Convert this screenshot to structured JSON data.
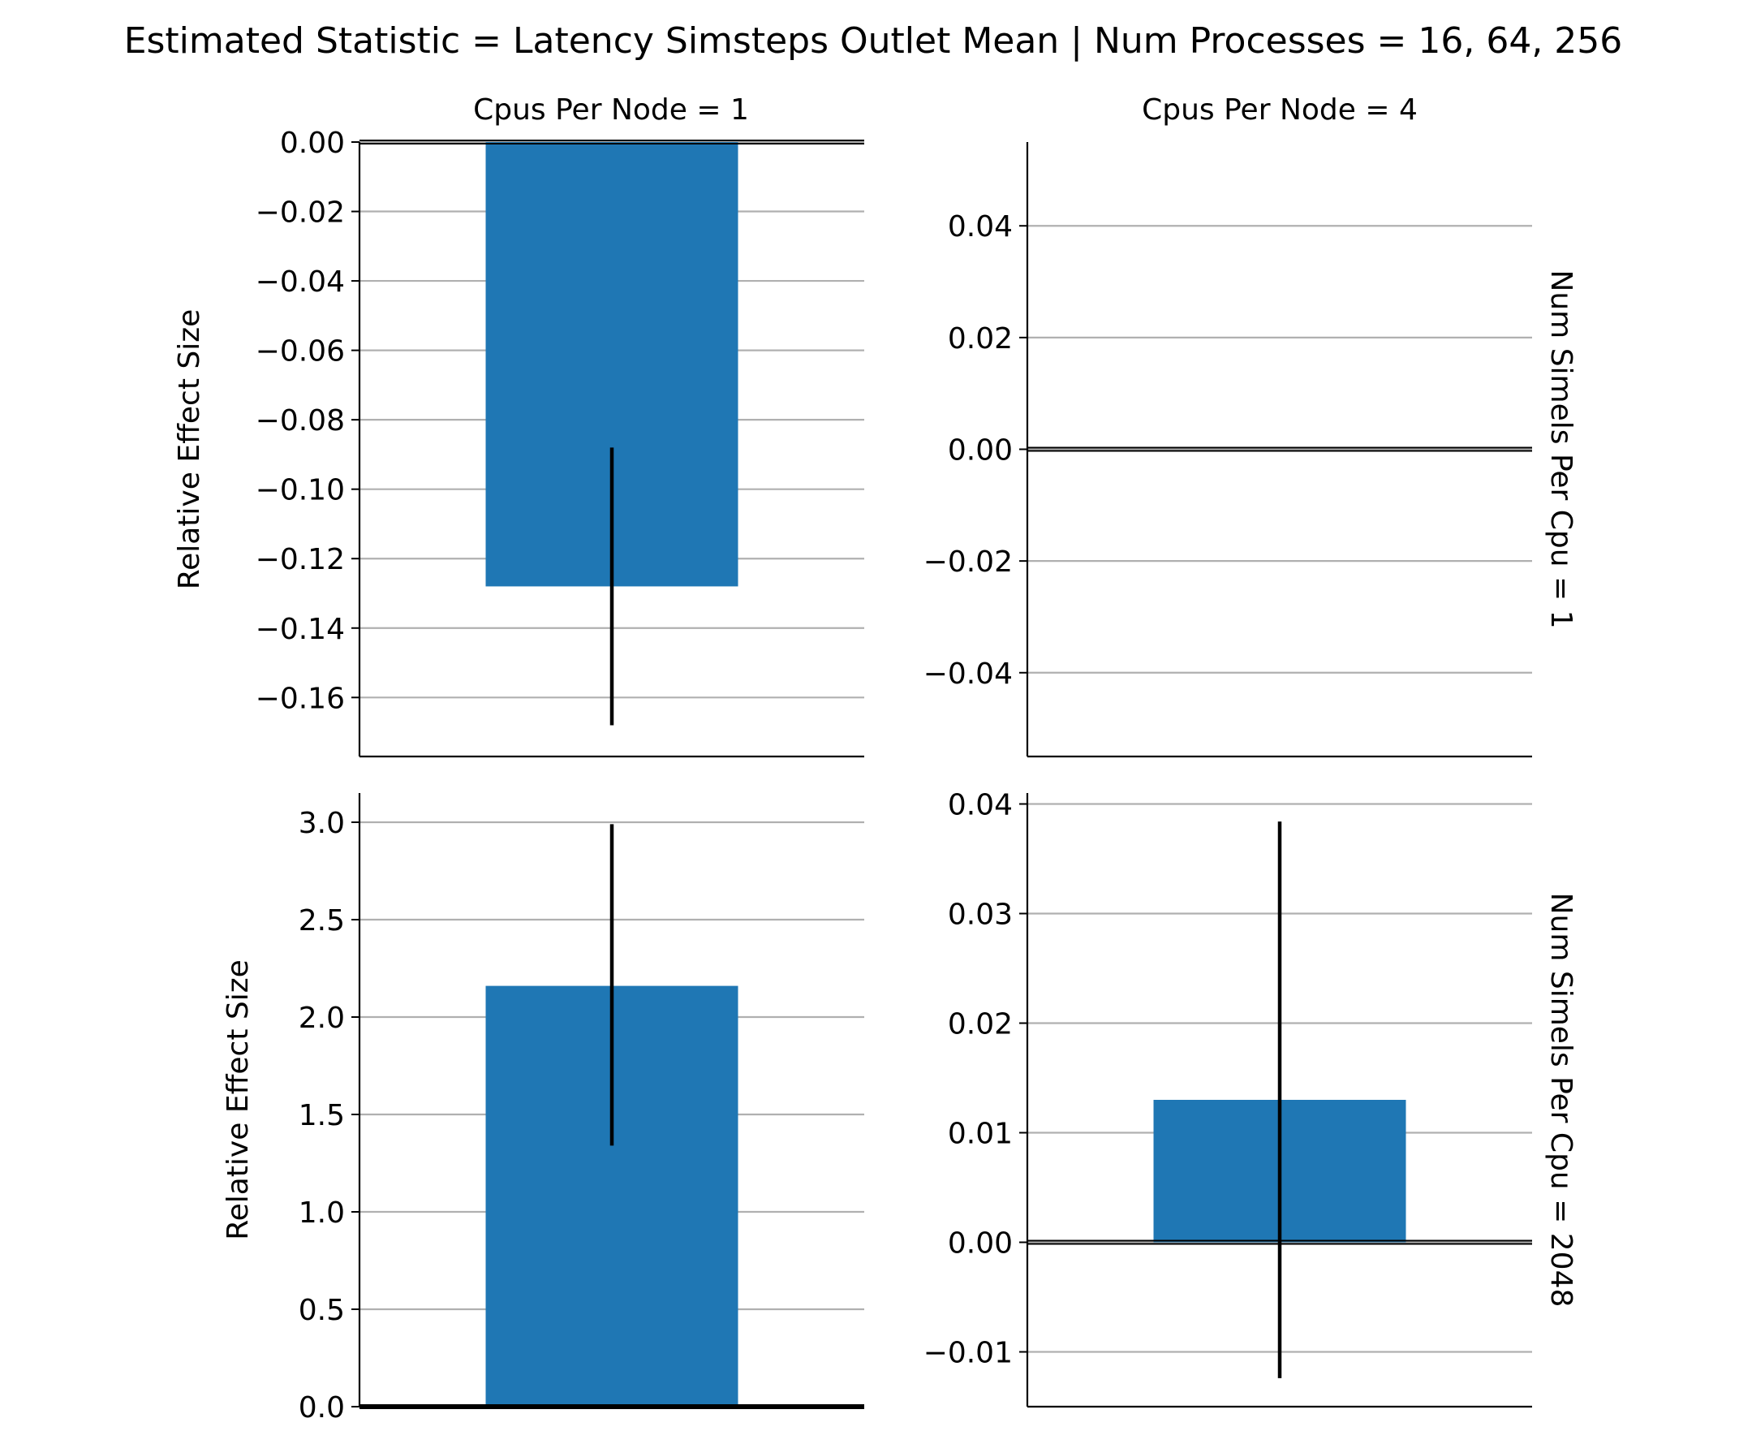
{
  "figure": {
    "title": "Estimated Statistic = Latency Simsteps Outlet Mean | Num Processes = 16, 64, 256"
  },
  "colors": {
    "bar": "#1f77b4",
    "errorbar": "#000000",
    "grid": "#b0b0b0",
    "axis": "#000000"
  },
  "chart_data": [
    {
      "type": "bar",
      "col_title": "Cpus Per Node = 1",
      "row_label": "",
      "ylabel": "Relative Effect Size",
      "ylim": [
        -0.177,
        0.0
      ],
      "yticks": [
        0.0,
        -0.02,
        -0.04,
        -0.06,
        -0.08,
        -0.1,
        -0.12,
        -0.14,
        -0.16
      ],
      "ytick_labels": [
        "0.00",
        "−0.02",
        "−0.04",
        "−0.06",
        "−0.08",
        "−0.10",
        "−0.12",
        "−0.14",
        "−0.16"
      ],
      "grid": true,
      "values": [
        -0.128
      ],
      "error_low": [
        -0.168
      ],
      "error_high": [
        -0.088
      ]
    },
    {
      "type": "bar",
      "col_title": "Cpus Per Node = 4",
      "row_label": "Num Simels Per Cpu = 1",
      "ylabel": "",
      "ylim": [
        -0.055,
        0.055
      ],
      "yticks": [
        0.04,
        0.02,
        0.0,
        -0.02,
        -0.04
      ],
      "ytick_labels": [
        "0.04",
        "0.02",
        "0.00",
        "−0.02",
        "−0.04"
      ],
      "grid": true,
      "values": [
        0.0
      ],
      "error_low": [
        0.0
      ],
      "error_high": [
        0.0
      ]
    },
    {
      "type": "bar",
      "col_title": "",
      "row_label": "",
      "ylabel": "Relative Effect Size",
      "ylim": [
        0.0,
        3.15
      ],
      "yticks": [
        3.0,
        2.5,
        2.0,
        1.5,
        1.0,
        0.5,
        0.0
      ],
      "ytick_labels": [
        "3.0",
        "2.5",
        "2.0",
        "1.5",
        "1.0",
        "0.5",
        "0.0"
      ],
      "grid": true,
      "values": [
        2.16
      ],
      "error_low": [
        1.34
      ],
      "error_high": [
        2.99
      ]
    },
    {
      "type": "bar",
      "col_title": "",
      "row_label": "Num Simels Per Cpu = 2048",
      "ylabel": "",
      "ylim": [
        -0.015,
        0.041
      ],
      "yticks": [
        0.04,
        0.03,
        0.02,
        0.01,
        0.0,
        -0.01
      ],
      "ytick_labels": [
        "0.04",
        "0.03",
        "0.02",
        "0.01",
        "0.00",
        "−0.01"
      ],
      "grid": true,
      "values": [
        0.013
      ],
      "error_low": [
        -0.0124
      ],
      "error_high": [
        0.0384
      ]
    }
  ]
}
